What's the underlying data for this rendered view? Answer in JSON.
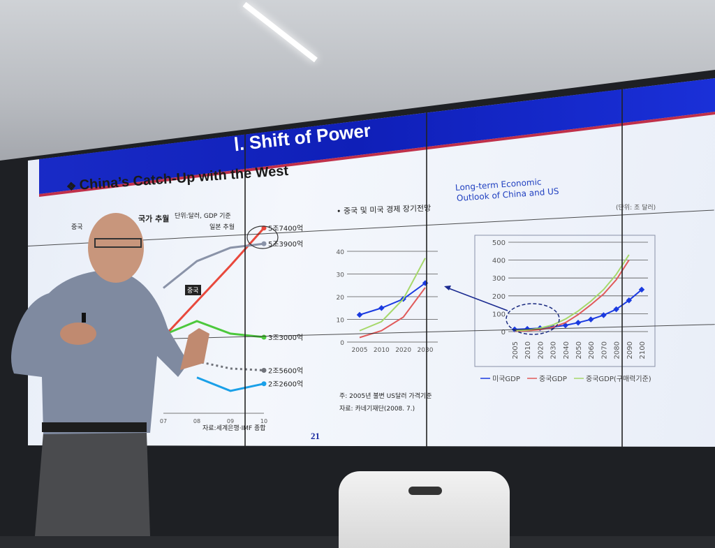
{
  "slide": {
    "title": "Ⅰ. Shift of Power",
    "subtitle": "China’s Catch-Up with the West",
    "bullet_icon": "diamond-cluster-icon",
    "page_number": "21",
    "colors": {
      "header_band": "#1526c4",
      "accent_red": "#c0304a",
      "background": "#eef2fa"
    }
  },
  "left_panel": {
    "heading_part1": "중국",
    "heading_part2": "국가 추월",
    "unit_note": "단위:달러, GDP 기준",
    "annotation_japan": "일본 추월",
    "china_tag": "중국",
    "source": "자료:세계은행·IMF 종합"
  },
  "middle_panel": {
    "heading": "• 중국 및 미국 경제 장기전망",
    "note1": "주: 2005년 불변 US달러 가격기준",
    "note2": "자료: 카네기재단(2008. 7.)"
  },
  "right_panel": {
    "heading_line1": "Long-term Economic",
    "heading_line2": "Outlook of China and US",
    "unit": "(단위: 조 달러)"
  },
  "chart_data": [
    {
      "type": "line",
      "categories": [
        "07",
        "08",
        "09",
        "10"
      ],
      "ylim": [
        1.6,
        6.0
      ],
      "series": [
        {
          "name": "5조7400억",
          "color": "#e8483c",
          "style": "solid",
          "values": [
            3.3,
            4.1,
            4.9,
            5.74
          ]
        },
        {
          "name": "5조3900억",
          "color": "#8a93a8",
          "style": "solid",
          "values": [
            4.4,
            5.0,
            5.3,
            5.39
          ]
        },
        {
          "name": "3조3000억",
          "color": "#4cc83c",
          "style": "solid",
          "values": [
            3.35,
            3.66,
            3.38,
            3.3
          ]
        },
        {
          "name": "2조5600억",
          "color": "#70737a",
          "style": "dotted",
          "values": [
            null,
            2.76,
            2.6,
            2.56
          ]
        },
        {
          "name": "2조2600억",
          "color": "#1aa0e8",
          "style": "solid",
          "values": [
            null,
            2.4,
            2.1,
            2.26
          ]
        }
      ]
    },
    {
      "type": "line",
      "categories": [
        "2005",
        "2010",
        "2020",
        "2030"
      ],
      "ylim": [
        0,
        40
      ],
      "yticks": [
        "0",
        "10",
        "20",
        "30",
        "40"
      ],
      "series": [
        {
          "color": "#1a3ae0",
          "marker": "diamond",
          "values": [
            12,
            15,
            19,
            26
          ]
        },
        {
          "color": "#e05a5a",
          "values": [
            2,
            5,
            11,
            24
          ]
        },
        {
          "color": "#a6d86a",
          "values": [
            5,
            9,
            19,
            37
          ]
        }
      ]
    },
    {
      "type": "line",
      "categories": [
        "2005",
        "2010",
        "2020",
        "2030",
        "2040",
        "2050",
        "2060",
        "2070",
        "2080",
        "2090",
        "2100"
      ],
      "ylim": [
        0,
        500
      ],
      "yticks": [
        "0",
        "100",
        "200",
        "300",
        "400",
        "500"
      ],
      "series": [
        {
          "name": "미국GDP",
          "color": "#1a3ae0",
          "marker": "diamond",
          "values": [
            12,
            15,
            19,
            26,
            35,
            50,
            68,
            92,
            125,
            175,
            235
          ]
        },
        {
          "name": "중국GDP",
          "color": "#e05a5a",
          "values": [
            2,
            5,
            11,
            24,
            50,
            95,
            150,
            210,
            290,
            400,
            null
          ]
        },
        {
          "name": "중국GDP(구매력기준)",
          "color": "#a6d86a",
          "values": [
            5,
            9,
            19,
            37,
            70,
            115,
            170,
            235,
            320,
            430,
            null
          ]
        }
      ]
    }
  ]
}
